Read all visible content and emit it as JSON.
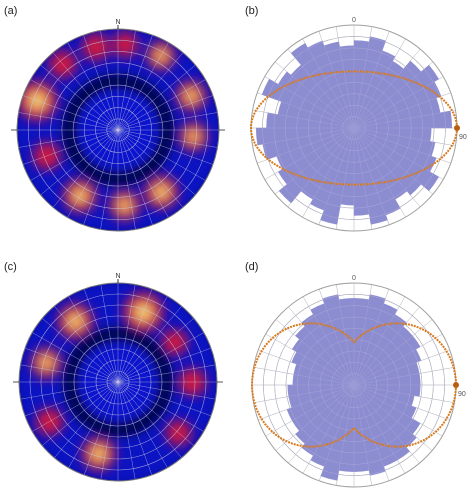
{
  "panels": [
    {
      "label": "(a)",
      "kind": "density_stereonet",
      "north_label": "N"
    },
    {
      "label": "(b)",
      "kind": "rose_with_fit",
      "top_label": "0",
      "right_label": "90"
    },
    {
      "label": "(c)",
      "kind": "density_stereonet",
      "north_label": "N"
    },
    {
      "label": "(d)",
      "kind": "rose_with_fit",
      "top_label": "0",
      "right_label": "90"
    }
  ],
  "colors": {
    "stereonet_background": "#000000",
    "density_low": "#0a14d8",
    "density_mid": "#d8143a",
    "density_high": "#ffef80",
    "grid_line": "#c8c8e0",
    "rose_fill": "#8c8cd0",
    "fit_curve": "#d97a1e",
    "circle_outline": "#777777"
  },
  "chart_data": [
    {
      "panel": "(a)",
      "type": "heatmap",
      "description_visible": "Polar density stereonet with a ring of high density",
      "hotspots": [
        {
          "azimuth_deg": 5,
          "radius_frac": 0.85,
          "intensity": 0.55
        },
        {
          "azimuth_deg": 30,
          "radius_frac": 0.85,
          "intensity": 0.65
        },
        {
          "azimuth_deg": 65,
          "radius_frac": 0.8,
          "intensity": 0.7
        },
        {
          "azimuth_deg": 95,
          "radius_frac": 0.75,
          "intensity": 0.65
        },
        {
          "azimuth_deg": 145,
          "radius_frac": 0.75,
          "intensity": 0.8
        },
        {
          "azimuth_deg": 175,
          "radius_frac": 0.75,
          "intensity": 0.7
        },
        {
          "azimuth_deg": 210,
          "radius_frac": 0.75,
          "intensity": 0.8
        },
        {
          "azimuth_deg": 250,
          "radius_frac": 0.75,
          "intensity": 0.6
        },
        {
          "azimuth_deg": 290,
          "radius_frac": 0.85,
          "intensity": 1.0
        },
        {
          "azimuth_deg": 320,
          "radius_frac": 0.85,
          "intensity": 0.6
        },
        {
          "azimuth_deg": 345,
          "radius_frac": 0.85,
          "intensity": 0.6
        }
      ]
    },
    {
      "panel": "(b)",
      "type": "area",
      "bin_deg": 10,
      "rose_radius_frac": [
        0.85,
        0.9,
        0.8,
        0.75,
        0.85,
        0.95,
        0.9,
        0.85,
        0.95,
        0.75,
        0.8,
        0.85,
        0.95,
        0.85,
        0.8,
        0.9,
        0.95,
        0.85,
        0.75,
        0.95,
        0.85,
        0.8,
        0.95,
        0.85,
        0.8,
        0.9,
        0.95,
        0.85,
        0.75,
        0.95,
        0.85,
        0.8,
        0.95,
        0.9,
        0.85,
        0.8
      ],
      "fit_curve": {
        "semi_major_frac": 1.0,
        "semi_minor_frac": 0.55,
        "shape": "ellipse"
      }
    },
    {
      "panel": "(c)",
      "type": "heatmap",
      "description_visible": "Polar density stereonet with a ring of high density",
      "hotspots": [
        {
          "azimuth_deg": 20,
          "radius_frac": 0.75,
          "intensity": 1.0
        },
        {
          "azimuth_deg": 55,
          "radius_frac": 0.7,
          "intensity": 0.55
        },
        {
          "azimuth_deg": 90,
          "radius_frac": 0.75,
          "intensity": 0.6
        },
        {
          "azimuth_deg": 130,
          "radius_frac": 0.8,
          "intensity": 0.55
        },
        {
          "azimuth_deg": 195,
          "radius_frac": 0.75,
          "intensity": 0.8
        },
        {
          "azimuth_deg": 240,
          "radius_frac": 0.8,
          "intensity": 0.6
        },
        {
          "azimuth_deg": 285,
          "radius_frac": 0.75,
          "intensity": 0.7
        },
        {
          "azimuth_deg": 325,
          "radius_frac": 0.75,
          "intensity": 0.85
        }
      ]
    },
    {
      "panel": "(d)",
      "type": "area",
      "bin_deg": 10,
      "rose_radius_frac": [
        0.85,
        0.9,
        0.85,
        0.8,
        0.75,
        0.75,
        0.7,
        0.65,
        0.65,
        0.65,
        0.6,
        0.65,
        0.75,
        0.8,
        0.85,
        0.85,
        0.9,
        0.85,
        0.85,
        0.95,
        0.85,
        0.8,
        0.75,
        0.7,
        0.7,
        0.65,
        0.65,
        0.6,
        0.6,
        0.65,
        0.7,
        0.75,
        0.8,
        0.85,
        0.9,
        0.85
      ],
      "fit_curve": {
        "semi_major_frac": 1.0,
        "semi_minor_frac": 0.55,
        "shape": "peanut"
      }
    }
  ]
}
